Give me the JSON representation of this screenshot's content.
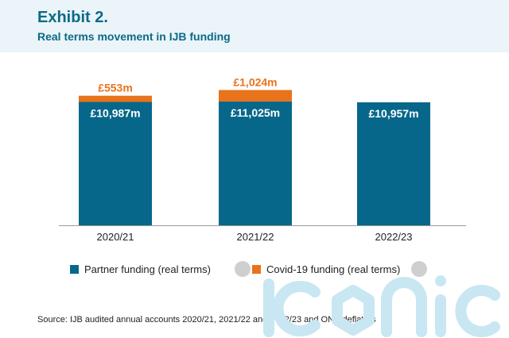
{
  "header": {
    "exhibit": "Exhibit 2.",
    "title": "Real terms movement in IJB funding"
  },
  "chart_data": {
    "type": "bar",
    "stacked": true,
    "categories": [
      "2020/21",
      "2021/22",
      "2022/23"
    ],
    "series": [
      {
        "name": "Partner funding (real terms)",
        "values": [
          10987,
          11025,
          10957
        ],
        "labels": [
          "£10,987m",
          "£11,025m",
          "£10,957m"
        ],
        "color": "#06678a"
      },
      {
        "name": "Covid-19 funding (real terms)",
        "values": [
          553,
          1024,
          0
        ],
        "labels": [
          "£553m",
          "£1,024m",
          ""
        ],
        "color": "#e8731b"
      }
    ],
    "ylim": [
      0,
      13000
    ],
    "grid": false,
    "legend_position": "bottom"
  },
  "legend": {
    "partner": "Partner funding (real terms)",
    "covid": "Covid-19 funding (real terms)"
  },
  "source": "Source: IJB audited annual accounts 2020/21, 2021/22 and 2022/23 and ONS deflators",
  "watermark": {
    "text": "ICONIC",
    "color": "#c8e7f2"
  }
}
